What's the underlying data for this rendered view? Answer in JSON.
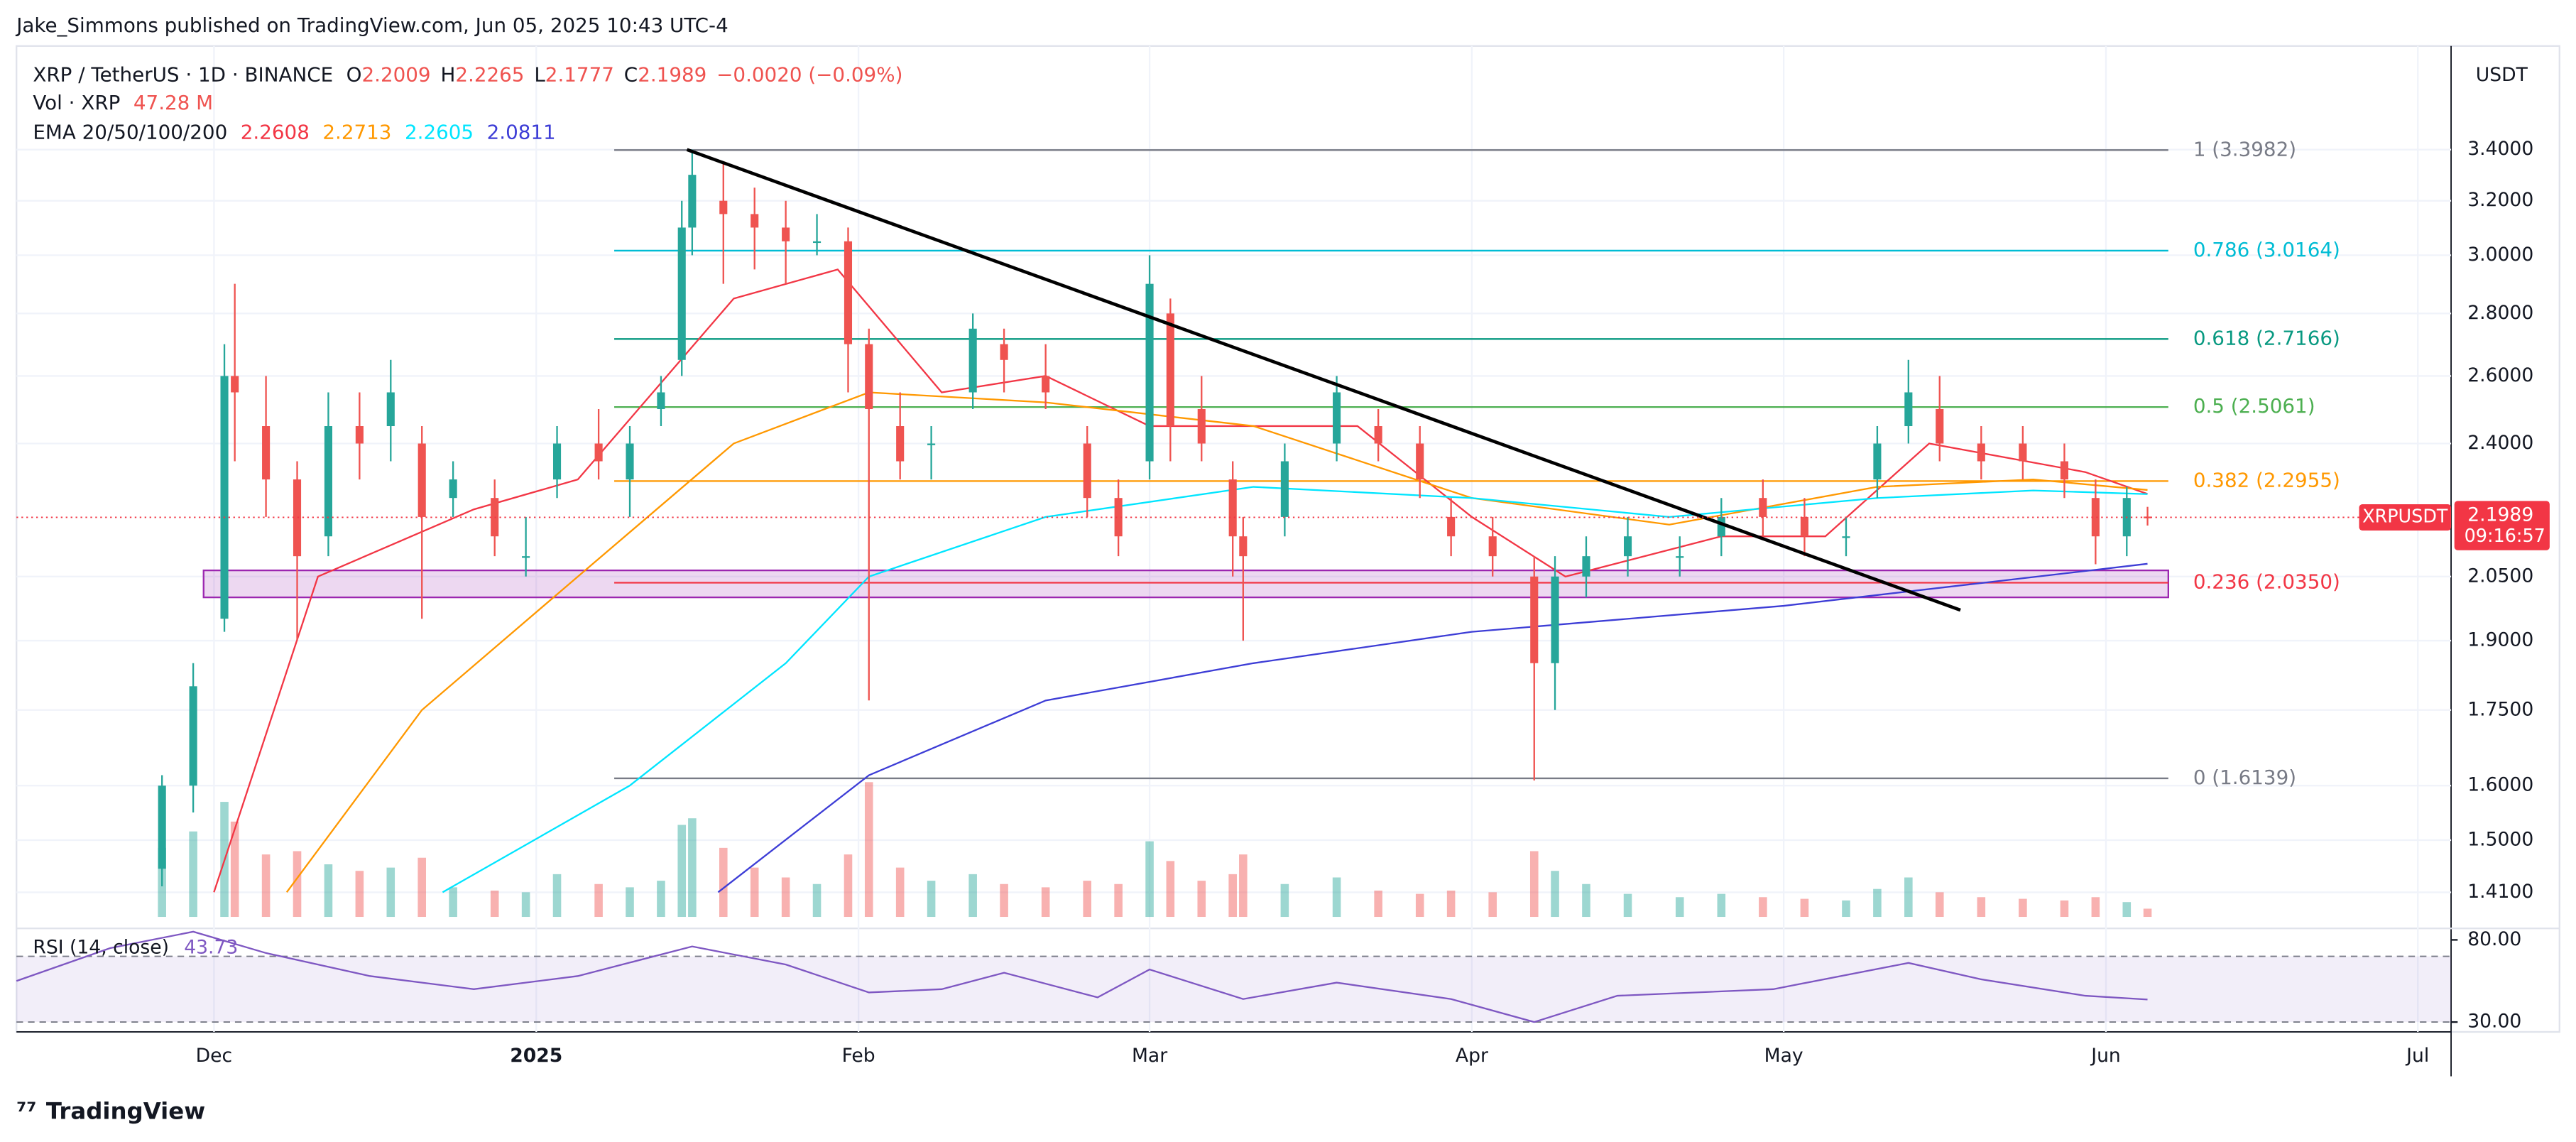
{
  "header": {
    "published": "Jake_Simmons published on TradingView.com, Jun 05, 2025 10:43 UTC-4"
  },
  "chart_data": {
    "type": "candlestick",
    "title": "XRP / TetherUS · 1D · BINANCE",
    "legend_labels": {
      "o": "O",
      "h": "H",
      "l": "L",
      "c": "C"
    },
    "change": "−0.0020 (−0.09%)",
    "x": [
      -5,
      -2,
      1,
      2,
      5,
      8,
      11,
      14,
      17,
      20,
      23,
      27,
      30,
      33,
      37,
      40,
      43,
      45,
      46,
      49,
      52,
      55,
      58,
      61,
      63,
      66,
      69,
      73,
      76,
      80,
      84,
      87,
      90,
      92,
      95,
      98,
      99,
      103,
      108,
      112,
      116,
      119,
      123,
      127,
      129,
      132,
      136,
      141,
      145,
      149,
      153,
      157,
      160,
      163,
      166,
      170,
      174,
      178,
      181,
      184,
      186
    ],
    "open": [
      1.45,
      1.6,
      1.95,
      2.6,
      2.45,
      2.3,
      2.15,
      2.45,
      2.45,
      2.4,
      2.25,
      2.25,
      2.1,
      2.3,
      2.4,
      2.3,
      2.5,
      2.65,
      3.1,
      3.2,
      3.15,
      3.1,
      3.05,
      3.05,
      2.7,
      2.45,
      2.4,
      2.55,
      2.7,
      2.6,
      2.4,
      2.25,
      2.35,
      2.8,
      2.5,
      2.3,
      2.15,
      2.2,
      2.4,
      2.45,
      2.4,
      2.2,
      2.15,
      2.05,
      1.85,
      2.05,
      2.1,
      2.1,
      2.15,
      2.25,
      2.2,
      2.15,
      2.3,
      2.45,
      2.5,
      2.4,
      2.4,
      2.35,
      2.25,
      2.15,
      2.2009
    ],
    "high": [
      1.62,
      1.85,
      2.7,
      2.9,
      2.6,
      2.35,
      2.55,
      2.55,
      2.65,
      2.45,
      2.35,
      2.3,
      2.2,
      2.45,
      2.5,
      2.45,
      2.6,
      3.2,
      3.4,
      3.35,
      3.25,
      3.2,
      3.15,
      3.1,
      2.75,
      2.55,
      2.45,
      2.8,
      2.75,
      2.7,
      2.45,
      2.3,
      3.0,
      2.85,
      2.6,
      2.35,
      2.2,
      2.4,
      2.6,
      2.5,
      2.45,
      2.25,
      2.2,
      2.1,
      2.1,
      2.15,
      2.2,
      2.15,
      2.25,
      2.3,
      2.25,
      2.2,
      2.45,
      2.65,
      2.6,
      2.45,
      2.45,
      2.4,
      2.3,
      2.28,
      2.2265
    ],
    "low": [
      1.42,
      1.55,
      1.92,
      2.35,
      2.2,
      1.9,
      2.1,
      2.3,
      2.35,
      1.95,
      2.2,
      2.1,
      2.05,
      2.25,
      2.3,
      2.2,
      2.45,
      2.6,
      3.0,
      2.9,
      2.95,
      2.9,
      3.0,
      2.55,
      1.77,
      2.3,
      2.3,
      2.5,
      2.55,
      2.5,
      2.2,
      2.1,
      2.3,
      2.35,
      2.35,
      2.05,
      1.9,
      2.15,
      2.35,
      2.35,
      2.25,
      2.1,
      2.05,
      1.61,
      1.75,
      2.0,
      2.05,
      2.05,
      2.1,
      2.15,
      2.1,
      2.1,
      2.25,
      2.4,
      2.35,
      2.3,
      2.3,
      2.25,
      2.08,
      2.1,
      2.1777
    ],
    "close": [
      1.6,
      1.8,
      2.6,
      2.55,
      2.3,
      2.1,
      2.45,
      2.4,
      2.55,
      2.2,
      2.3,
      2.15,
      2.1,
      2.4,
      2.35,
      2.4,
      2.55,
      3.1,
      3.3,
      3.15,
      3.1,
      3.05,
      3.05,
      2.7,
      2.5,
      2.35,
      2.4,
      2.75,
      2.65,
      2.55,
      2.25,
      2.15,
      2.9,
      2.45,
      2.4,
      2.15,
      2.1,
      2.35,
      2.55,
      2.4,
      2.3,
      2.15,
      2.1,
      1.85,
      2.05,
      2.1,
      2.15,
      2.1,
      2.2,
      2.2,
      2.15,
      2.15,
      2.4,
      2.55,
      2.4,
      2.35,
      2.35,
      2.3,
      2.15,
      2.25,
      2.1989
    ],
    "up_color": "#26a69a",
    "down_color": "#ef5350",
    "volume": {
      "label": "Vol · XRP",
      "last": "47.28 M",
      "lim": [
        0,
        1200
      ],
      "values": [
        420,
        520,
        700,
        580,
        380,
        400,
        320,
        280,
        300,
        360,
        180,
        160,
        150,
        260,
        200,
        180,
        220,
        560,
        600,
        420,
        300,
        240,
        200,
        380,
        820,
        300,
        220,
        260,
        200,
        180,
        220,
        200,
        460,
        340,
        220,
        260,
        380,
        200,
        240,
        160,
        140,
        160,
        150,
        400,
        280,
        200,
        140,
        120,
        140,
        120,
        110,
        100,
        170,
        240,
        150,
        120,
        110,
        100,
        120,
        90,
        50
      ]
    },
    "ema_label": "EMA 20/50/100/200",
    "series": [
      {
        "color": "#f23645",
        "x": [
          0,
          10,
          25,
          35,
          50,
          60,
          70,
          80,
          90,
          100,
          110,
          121,
          130,
          145,
          155,
          165,
          180,
          186
        ],
        "values": [
          1.41,
          2.05,
          2.22,
          2.3,
          2.85,
          2.95,
          2.55,
          2.6,
          2.45,
          2.45,
          2.45,
          2.2,
          2.05,
          2.15,
          2.15,
          2.4,
          2.32,
          2.2608
        ]
      },
      {
        "color": "#ff9800",
        "x": [
          7,
          20,
          35,
          50,
          63,
          80,
          100,
          121,
          140,
          160,
          175,
          186
        ],
        "values": [
          1.41,
          1.75,
          2.05,
          2.4,
          2.55,
          2.52,
          2.45,
          2.25,
          2.18,
          2.28,
          2.3,
          2.2713
        ]
      },
      {
        "color": "#00e5ff",
        "x": [
          22,
          40,
          55,
          63,
          80,
          100,
          121,
          140,
          160,
          175,
          186
        ],
        "values": [
          1.41,
          1.6,
          1.85,
          2.05,
          2.2,
          2.28,
          2.25,
          2.2,
          2.25,
          2.27,
          2.2605
        ]
      },
      {
        "color": "#3d3dd6",
        "x": [
          48.5,
          63,
          80,
          100,
          121,
          151,
          172,
          186
        ],
        "values": [
          1.41,
          1.62,
          1.77,
          1.85,
          1.92,
          1.98,
          2.04,
          2.0811
        ]
      }
    ],
    "log": true,
    "grid": true,
    "ylim": [
      1.351,
      3.807
    ],
    "yticks": [
      {
        "value": 3.4,
        "label": "3.4000"
      },
      {
        "value": 3.2,
        "label": "3.2000"
      },
      {
        "value": 3.0,
        "label": "3.0000"
      },
      {
        "value": 2.8,
        "label": "2.8000"
      },
      {
        "value": 2.6,
        "label": "2.6000"
      },
      {
        "value": 2.4,
        "label": "2.4000"
      },
      {
        "value": 2.05,
        "label": "2.0500"
      },
      {
        "value": 1.9,
        "label": "1.9000"
      },
      {
        "value": 1.75,
        "label": "1.7500"
      },
      {
        "value": 1.6,
        "label": "1.6000"
      },
      {
        "value": 1.5,
        "label": "1.5000"
      },
      {
        "value": 1.41,
        "label": "1.4100"
      }
    ],
    "xlim": [
      -19,
      215.2
    ],
    "xticks": [
      {
        "value": 0,
        "label": "Dec"
      },
      {
        "value": 31,
        "label": "2025"
      },
      {
        "value": 62,
        "label": "Feb"
      },
      {
        "value": 90,
        "label": "Mar"
      },
      {
        "value": 121,
        "label": "Apr"
      },
      {
        "value": 151,
        "label": "May"
      },
      {
        "value": 182,
        "label": "Jun"
      },
      {
        "value": 212,
        "label": "Jul"
      }
    ],
    "currency": "USDT",
    "price_label": {
      "symbol": "XRPUSDT",
      "countdown": "09:16:57",
      "color": "#f23645"
    },
    "fib_x": [
      38.5,
      188
    ],
    "fib": [
      {
        "label": "1 (3.3982)",
        "value": 3.3982,
        "color": "#787b86"
      },
      {
        "label": "0.786 (3.0164)",
        "value": 3.0164,
        "color": "#00bcd4"
      },
      {
        "label": "0.618 (2.7166)",
        "value": 2.7166,
        "color": "#089981"
      },
      {
        "label": "0.5 (2.5061)",
        "value": 2.5061,
        "color": "#4caf50"
      },
      {
        "label": "0.382 (2.2955)",
        "value": 2.2955,
        "color": "#ff9800"
      },
      {
        "label": "0.236 (2.0350)",
        "value": 2.035,
        "color": "#f23645"
      },
      {
        "label": "0 (1.6139)",
        "value": 1.6139,
        "color": "#787b86"
      }
    ],
    "trendline": {
      "x": [
        45.5,
        168
      ],
      "values": [
        3.4,
        1.97
      ],
      "color": "#000000"
    },
    "zone": {
      "x": [
        -1,
        188
      ],
      "values": [
        2.0,
        2.065
      ],
      "color": "#9c27b0"
    },
    "rsi": {
      "label": "RSI (14, close)",
      "color": "#7e57c2",
      "ylim": [
        22,
        87
      ],
      "yticks": [
        {
          "value": 80,
          "label": "80.00"
        },
        {
          "value": 30,
          "label": "30.00"
        }
      ],
      "bands": [
        70,
        30
      ],
      "x": [
        -19,
        -10,
        -2,
        5,
        15,
        25,
        35,
        46,
        55,
        63,
        70,
        76,
        85,
        90,
        99,
        108,
        119,
        127,
        135,
        150,
        163,
        170,
        180,
        186
      ],
      "values": [
        55,
        75,
        85,
        72,
        58,
        50,
        58,
        76,
        65,
        48,
        50,
        60,
        45,
        62,
        44,
        54,
        44,
        30,
        46,
        50,
        66,
        56,
        46,
        43.73
      ]
    }
  },
  "footer": {
    "brand": "TradingView"
  }
}
